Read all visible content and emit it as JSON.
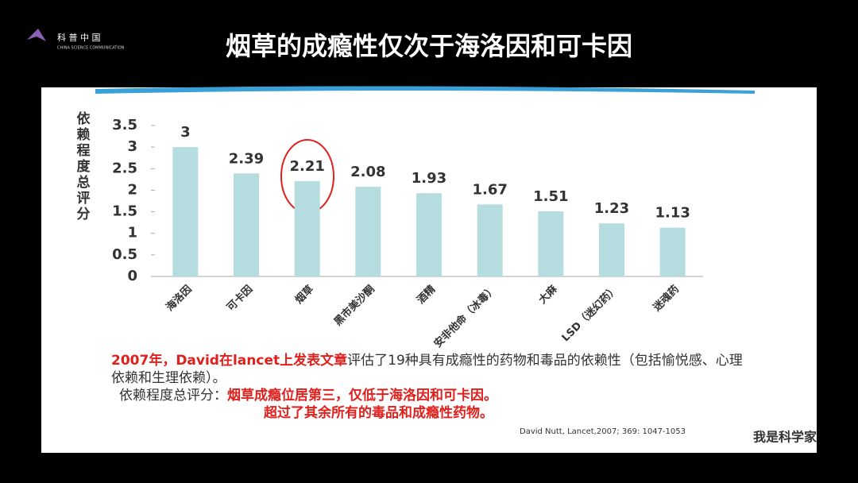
{
  "logo": {
    "name": "科 普 中 国",
    "subtitle": "CHINA SCIENCE COMMUNICATION"
  },
  "slide_title": "烟草的成瘾性仅次于海洛因和可卡因",
  "chart_data": {
    "type": "bar",
    "y_label": "依赖程度总评分",
    "categories": [
      "海洛因",
      "可卡因",
      "烟草",
      "黑市美沙酮",
      "酒精",
      "安非他命（冰毒）",
      "大麻",
      "LSD（迷幻药）",
      "迷魂药"
    ],
    "values": [
      3,
      2.39,
      2.21,
      2.08,
      1.93,
      1.67,
      1.51,
      1.23,
      1.13
    ],
    "color": "#b5dde0",
    "ylim": [
      0,
      3.5
    ],
    "yticks": [
      0,
      0.5,
      1,
      1.5,
      2,
      2.5,
      3,
      3.5
    ]
  },
  "note": {
    "lead": "2007年，David在lancet上发表文章",
    "text": "评估了19种具有成瘾性的药物和毒品的依赖性（包括愉悦感、心理依赖和生理依赖）。",
    "score_label": "依赖程度总评分：",
    "finding1": "烟草成瘾位居第三，仅低于海洛因和可卡因。",
    "finding2": "超过了其余所有的毒品和成瘾性药物。",
    "citation": "David Nutt, Lancet,2007; 369: 1047-1053"
  },
  "watermark": "我是科学家"
}
